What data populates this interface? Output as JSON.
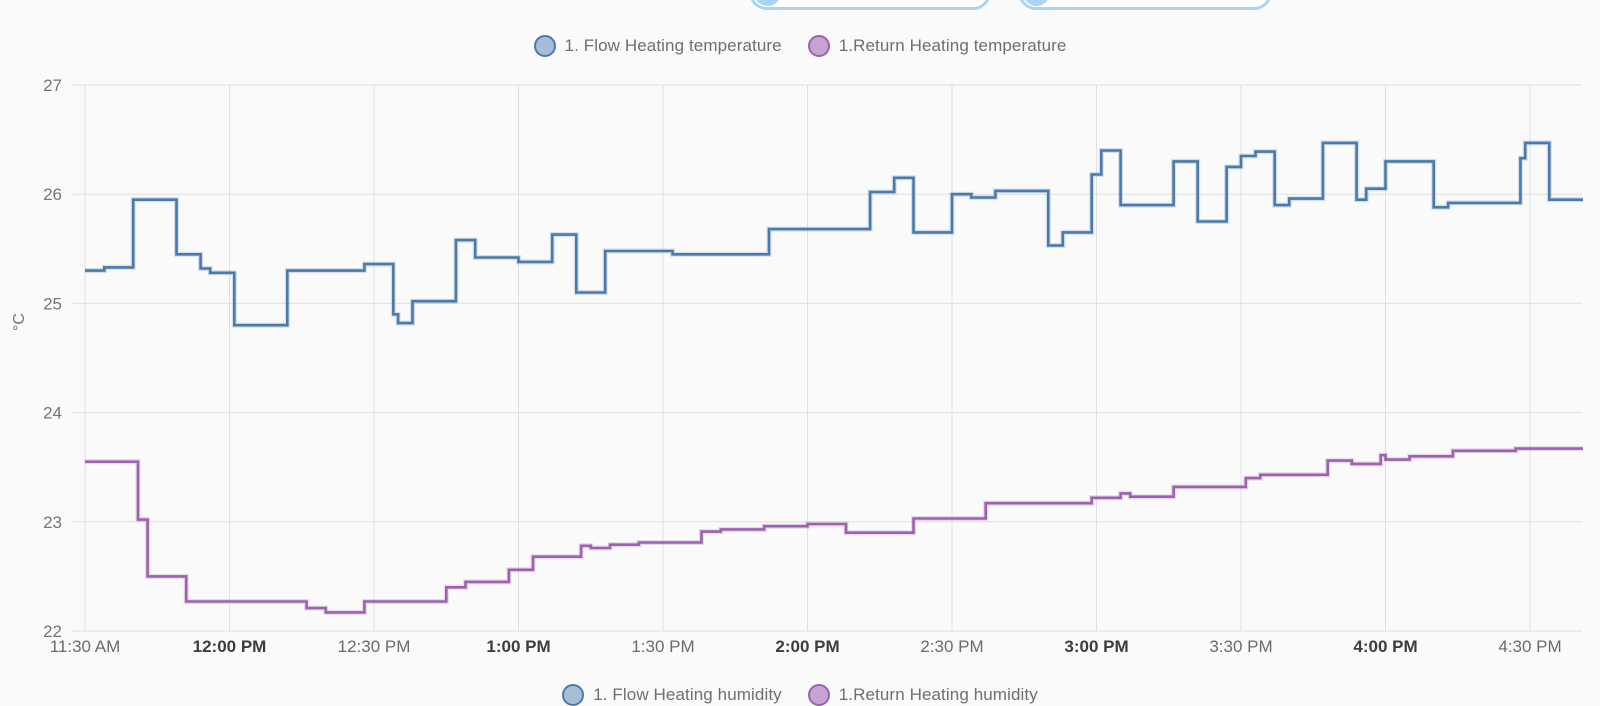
{
  "toolbar": {
    "chips": [
      {
        "name": "chip-left"
      },
      {
        "name": "chip-right"
      }
    ],
    "chip_color": "#aad4f4"
  },
  "legend_top": {
    "items": [
      {
        "label": "1. Flow Heating temperature",
        "color": "#4a7aab",
        "fill": "#a7bcd6"
      },
      {
        "label": "1.Return Heating temperature",
        "color": "#9d61ae",
        "fill": "#c7a3d3"
      }
    ]
  },
  "legend_bottom": {
    "items": [
      {
        "label": "1. Flow Heating humidity",
        "color": "#4a7aab",
        "fill": "#a7bcd6"
      },
      {
        "label": "1.Return Heating humidity",
        "color": "#9d61ae",
        "fill": "#c7a3d3"
      }
    ]
  },
  "chart_data": {
    "type": "line",
    "step": "after",
    "title": "",
    "xlabel": "",
    "ylabel": "°C",
    "ylim": [
      22,
      27
    ],
    "grid": true,
    "legend_position": "top",
    "x_start_label": "11:30 AM",
    "x_total_minutes": 311,
    "y_ticks": [
      {
        "value": 27,
        "label": "27"
      },
      {
        "value": 26,
        "label": "26"
      },
      {
        "value": 25,
        "label": "25"
      },
      {
        "value": 24,
        "label": "24"
      },
      {
        "value": 23,
        "label": "23"
      },
      {
        "value": 22,
        "label": "22"
      }
    ],
    "x_ticks": [
      {
        "minute": 0,
        "label": "11:30 AM",
        "bold": false
      },
      {
        "minute": 30,
        "label": "12:00 PM",
        "bold": true
      },
      {
        "minute": 60,
        "label": "12:30 PM",
        "bold": false
      },
      {
        "minute": 90,
        "label": "1:00 PM",
        "bold": true
      },
      {
        "minute": 120,
        "label": "1:30 PM",
        "bold": false
      },
      {
        "minute": 150,
        "label": "2:00 PM",
        "bold": true
      },
      {
        "minute": 180,
        "label": "2:30 PM",
        "bold": false
      },
      {
        "minute": 210,
        "label": "3:00 PM",
        "bold": true
      },
      {
        "minute": 240,
        "label": "3:30 PM",
        "bold": false
      },
      {
        "minute": 270,
        "label": "4:00 PM",
        "bold": true
      },
      {
        "minute": 300,
        "label": "4:30 PM",
        "bold": false
      }
    ],
    "series": [
      {
        "name": "1. Flow Heating temperature",
        "color": "#4a7aab",
        "points": [
          [
            0,
            25.3
          ],
          [
            4,
            25.33
          ],
          [
            10,
            25.95
          ],
          [
            19,
            25.45
          ],
          [
            24,
            25.32
          ],
          [
            26,
            25.28
          ],
          [
            31,
            24.8
          ],
          [
            42,
            25.3
          ],
          [
            58,
            25.36
          ],
          [
            64,
            24.9
          ],
          [
            65,
            24.82
          ],
          [
            68,
            25.02
          ],
          [
            77,
            25.58
          ],
          [
            81,
            25.42
          ],
          [
            90,
            25.38
          ],
          [
            97,
            25.63
          ],
          [
            102,
            25.1
          ],
          [
            108,
            25.48
          ],
          [
            122,
            25.45
          ],
          [
            142,
            25.68
          ],
          [
            163,
            26.02
          ],
          [
            168,
            26.15
          ],
          [
            172,
            25.65
          ],
          [
            180,
            26.0
          ],
          [
            184,
            25.97
          ],
          [
            189,
            26.03
          ],
          [
            200,
            25.53
          ],
          [
            203,
            25.65
          ],
          [
            209,
            26.18
          ],
          [
            211,
            26.4
          ],
          [
            215,
            25.9
          ],
          [
            226,
            26.3
          ],
          [
            231,
            25.75
          ],
          [
            237,
            26.25
          ],
          [
            240,
            26.35
          ],
          [
            243,
            26.39
          ],
          [
            247,
            25.9
          ],
          [
            250,
            25.96
          ],
          [
            257,
            26.47
          ],
          [
            264,
            25.95
          ],
          [
            266,
            26.05
          ],
          [
            270,
            26.3
          ],
          [
            280,
            25.88
          ],
          [
            283,
            25.92
          ],
          [
            298,
            26.33
          ],
          [
            299,
            26.47
          ],
          [
            304,
            25.95
          ]
        ]
      },
      {
        "name": "1.Return Heating temperature",
        "color": "#9d61ae",
        "points": [
          [
            0,
            23.55
          ],
          [
            11,
            23.02
          ],
          [
            13,
            22.5
          ],
          [
            21,
            22.27
          ],
          [
            46,
            22.21
          ],
          [
            50,
            22.17
          ],
          [
            58,
            22.27
          ],
          [
            75,
            22.4
          ],
          [
            79,
            22.45
          ],
          [
            88,
            22.56
          ],
          [
            93,
            22.68
          ],
          [
            103,
            22.78
          ],
          [
            105,
            22.76
          ],
          [
            109,
            22.79
          ],
          [
            115,
            22.81
          ],
          [
            128,
            22.91
          ],
          [
            132,
            22.93
          ],
          [
            141,
            22.96
          ],
          [
            150,
            22.98
          ],
          [
            158,
            22.9
          ],
          [
            172,
            23.03
          ],
          [
            187,
            23.17
          ],
          [
            209,
            23.22
          ],
          [
            215,
            23.26
          ],
          [
            217,
            23.23
          ],
          [
            226,
            23.32
          ],
          [
            241,
            23.4
          ],
          [
            244,
            23.43
          ],
          [
            258,
            23.56
          ],
          [
            263,
            23.53
          ],
          [
            269,
            23.61
          ],
          [
            270,
            23.57
          ],
          [
            275,
            23.6
          ],
          [
            284,
            23.65
          ],
          [
            297,
            23.67
          ]
        ]
      }
    ]
  }
}
